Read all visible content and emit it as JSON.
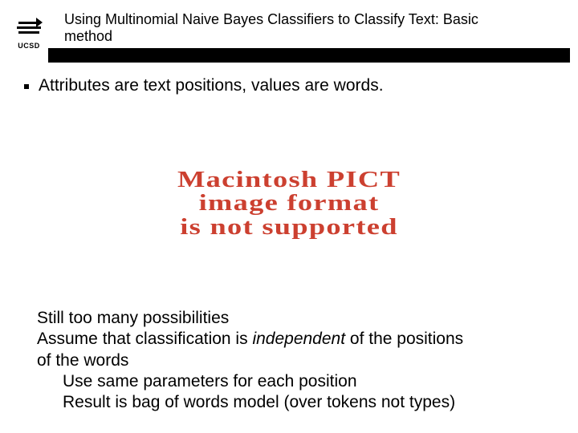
{
  "logo": {
    "text": "UCSD"
  },
  "title": {
    "text": "Using Multinomial Naive Bayes Classifiers to Classify Text: Basic method",
    "fontsize": 18
  },
  "bullet1": {
    "text": "Attributes are text positions, values are words.",
    "fontsize": 21
  },
  "pict": {
    "line1": "Macintosh PICT",
    "line2": "image format",
    "line3": "is not supported",
    "color": "#cc4030",
    "fontsize": 28
  },
  "lower": {
    "l1": "Still too many possibilities",
    "l2a": "Assume that classification is ",
    "l2b": "independent",
    "l2c": " of the positions",
    "l3": "of the words",
    "l4": "Use same parameters for each position",
    "l5": "Result is bag of words model (over tokens not types)",
    "fontsize": 21
  },
  "colors": {
    "text": "#000000",
    "bg": "#ffffff",
    "rule": "#000000"
  }
}
